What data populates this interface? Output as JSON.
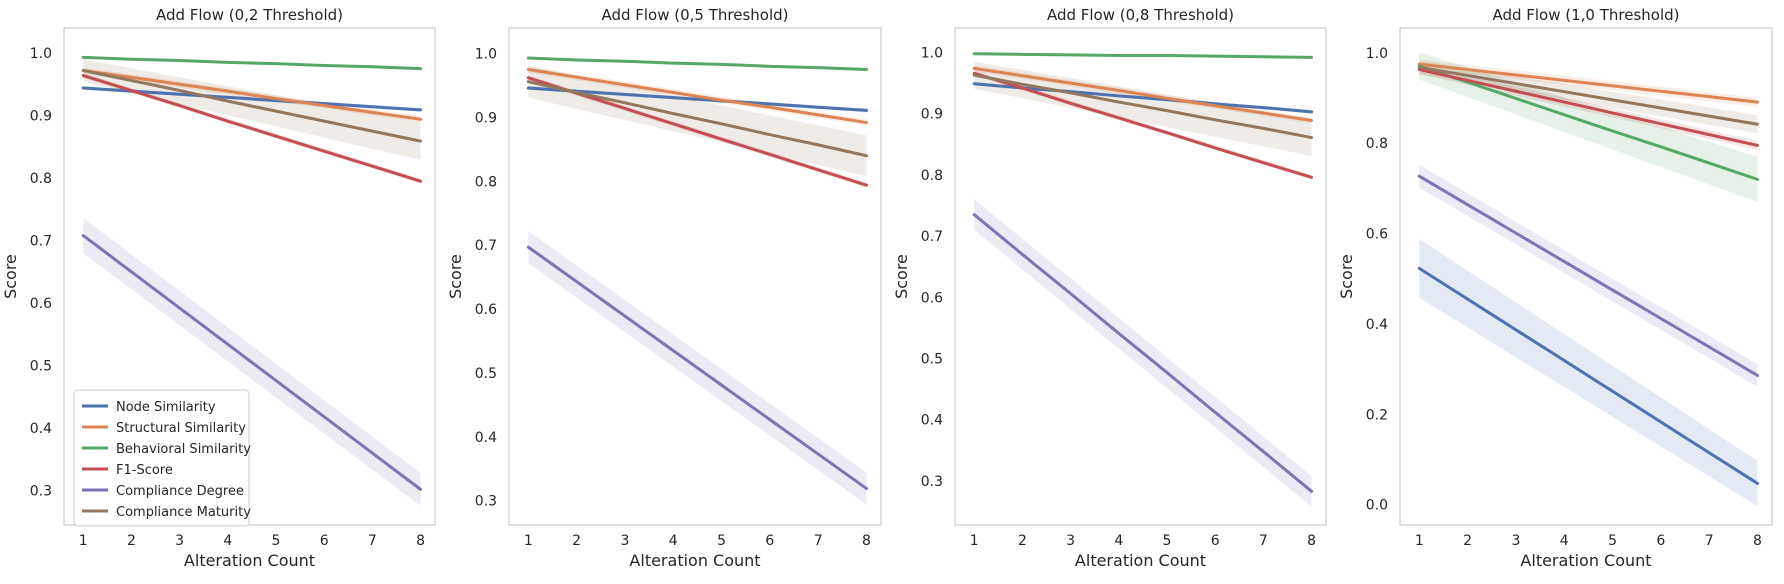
{
  "chart_data": [
    {
      "type": "line",
      "title": "Add Flow (0,2 Threshold)",
      "xlabel": "Alteration Count",
      "ylabel": "Score",
      "x": [
        1,
        2,
        3,
        4,
        5,
        6,
        7,
        8
      ],
      "xlim": [
        0.6,
        8.3
      ],
      "ylim": [
        0.245,
        1.04
      ],
      "yticks": [
        "0.3",
        "0.4",
        "0.5",
        "0.6",
        "0.7",
        "0.8",
        "0.9",
        "1.0"
      ],
      "yticks_values": [
        0.3,
        0.4,
        0.5,
        0.6,
        0.7,
        0.8,
        0.9,
        1.0
      ],
      "grid": false,
      "legend": "lower-left",
      "series": [
        {
          "name": "Node Similarity",
          "values": [
            0.944,
            0.939,
            0.934,
            0.929,
            0.924,
            0.919,
            0.914,
            0.909
          ],
          "ci": [
            0.003,
            0.003
          ]
        },
        {
          "name": "Structural Similarity",
          "values": [
            0.972,
            0.961,
            0.95,
            0.939,
            0.927,
            0.916,
            0.905,
            0.894
          ],
          "ci": [
            0.005,
            0.005
          ]
        },
        {
          "name": "Behavioral Similarity",
          "values": [
            0.993,
            0.99,
            0.988,
            0.985,
            0.983,
            0.98,
            0.978,
            0.975
          ],
          "ci": [
            0.002,
            0.002
          ]
        },
        {
          "name": "F1-Score",
          "values": [
            0.964,
            0.94,
            0.916,
            0.891,
            0.867,
            0.843,
            0.819,
            0.795
          ],
          "ci": [
            0.004,
            0.004
          ]
        },
        {
          "name": "Compliance Degree",
          "values": [
            0.708,
            0.65,
            0.592,
            0.534,
            0.476,
            0.418,
            0.36,
            0.302
          ],
          "ci": [
            0.028,
            0.026
          ]
        },
        {
          "name": "Compliance Maturity",
          "values": [
            0.972,
            0.956,
            0.94,
            0.923,
            0.907,
            0.891,
            0.875,
            0.859
          ],
          "ci": [
            0.018,
            0.03
          ]
        }
      ]
    },
    {
      "type": "line",
      "title": "Add Flow (0,5 Threshold)",
      "xlabel": "Alteration Count",
      "ylabel": "Score",
      "x": [
        1,
        2,
        3,
        4,
        5,
        6,
        7,
        8
      ],
      "xlim": [
        0.6,
        8.3
      ],
      "ylim": [
        0.262,
        1.04
      ],
      "yticks": [
        "0.3",
        "0.4",
        "0.5",
        "0.6",
        "0.7",
        "0.8",
        "0.9",
        "1.0"
      ],
      "yticks_values": [
        0.3,
        0.4,
        0.5,
        0.6,
        0.7,
        0.8,
        0.9,
        1.0
      ],
      "grid": false,
      "legend": "none",
      "series": [
        {
          "name": "Node Similarity",
          "values": [
            0.946,
            0.941,
            0.936,
            0.931,
            0.926,
            0.921,
            0.916,
            0.911
          ],
          "ci": [
            0.003,
            0.003
          ]
        },
        {
          "name": "Structural Similarity",
          "values": [
            0.975,
            0.963,
            0.951,
            0.939,
            0.927,
            0.916,
            0.904,
            0.892
          ],
          "ci": [
            0.005,
            0.005
          ]
        },
        {
          "name": "Behavioral Similarity",
          "values": [
            0.993,
            0.99,
            0.988,
            0.985,
            0.983,
            0.98,
            0.978,
            0.975
          ],
          "ci": [
            0.002,
            0.002
          ]
        },
        {
          "name": "F1-Score",
          "values": [
            0.962,
            0.938,
            0.914,
            0.89,
            0.866,
            0.842,
            0.818,
            0.794
          ],
          "ci": [
            0.004,
            0.004
          ]
        },
        {
          "name": "Compliance Degree",
          "values": [
            0.697,
            0.643,
            0.589,
            0.535,
            0.481,
            0.427,
            0.373,
            0.319
          ],
          "ci": [
            0.025,
            0.025
          ]
        },
        {
          "name": "Compliance Maturity",
          "values": [
            0.956,
            0.939,
            0.923,
            0.906,
            0.89,
            0.873,
            0.857,
            0.84
          ],
          "ci": [
            0.025,
            0.032
          ]
        }
      ]
    },
    {
      "type": "line",
      "title": "Add Flow (0,8 Threshold)",
      "xlabel": "Alteration Count",
      "ylabel": "Score",
      "x": [
        1,
        2,
        3,
        4,
        5,
        6,
        7,
        8
      ],
      "xlim": [
        0.6,
        8.3
      ],
      "ylim": [
        0.228,
        1.04
      ],
      "yticks": [
        "0.3",
        "0.4",
        "0.5",
        "0.6",
        "0.7",
        "0.8",
        "0.9",
        "1.0"
      ],
      "yticks_values": [
        0.3,
        0.4,
        0.5,
        0.6,
        0.7,
        0.8,
        0.9,
        1.0
      ],
      "grid": false,
      "legend": "none",
      "series": [
        {
          "name": "Node Similarity",
          "values": [
            0.949,
            0.942,
            0.936,
            0.929,
            0.923,
            0.916,
            0.91,
            0.903
          ],
          "ci": [
            0.003,
            0.003
          ]
        },
        {
          "name": "Structural Similarity",
          "values": [
            0.974,
            0.962,
            0.95,
            0.938,
            0.925,
            0.913,
            0.901,
            0.889
          ],
          "ci": [
            0.005,
            0.005
          ]
        },
        {
          "name": "Behavioral Similarity",
          "values": [
            0.998,
            0.997,
            0.996,
            0.995,
            0.995,
            0.994,
            0.993,
            0.992
          ],
          "ci": [
            0.002,
            0.002
          ]
        },
        {
          "name": "F1-Score",
          "values": [
            0.966,
            0.942,
            0.917,
            0.893,
            0.869,
            0.844,
            0.82,
            0.796
          ],
          "ci": [
            0.004,
            0.004
          ]
        },
        {
          "name": "Compliance Degree",
          "values": [
            0.735,
            0.67,
            0.606,
            0.541,
            0.477,
            0.412,
            0.348,
            0.283
          ],
          "ci": [
            0.025,
            0.025
          ]
        },
        {
          "name": "Compliance Maturity",
          "values": [
            0.963,
            0.948,
            0.934,
            0.919,
            0.905,
            0.89,
            0.876,
            0.861
          ],
          "ci": [
            0.022,
            0.03
          ]
        }
      ]
    },
    {
      "type": "line",
      "title": "Add Flow (1,0 Threshold)",
      "xlabel": "Alteration Count",
      "ylabel": "Score",
      "x": [
        1,
        2,
        3,
        4,
        5,
        6,
        7,
        8
      ],
      "xlim": [
        0.6,
        8.3
      ],
      "ylim": [
        -0.045,
        1.055
      ],
      "yticks": [
        "0.0",
        "0.2",
        "0.4",
        "0.6",
        "0.8",
        "1.0"
      ],
      "yticks_values": [
        0.0,
        0.2,
        0.4,
        0.6,
        0.8,
        1.0
      ],
      "grid": false,
      "legend": "none",
      "series": [
        {
          "name": "Node Similarity",
          "values": [
            0.523,
            0.455,
            0.387,
            0.319,
            0.251,
            0.183,
            0.115,
            0.047
          ],
          "ci": [
            0.065,
            0.05
          ]
        },
        {
          "name": "Structural Similarity",
          "values": [
            0.975,
            0.963,
            0.951,
            0.939,
            0.927,
            0.915,
            0.903,
            0.891
          ],
          "ci": [
            0.01,
            0.01
          ]
        },
        {
          "name": "Behavioral Similarity",
          "values": [
            0.971,
            0.935,
            0.899,
            0.863,
            0.827,
            0.792,
            0.756,
            0.72
          ],
          "ci": [
            0.03,
            0.05
          ]
        },
        {
          "name": "F1-Score",
          "values": [
            0.963,
            0.939,
            0.915,
            0.891,
            0.867,
            0.843,
            0.819,
            0.795
          ],
          "ci": [
            0.01,
            0.01
          ]
        },
        {
          "name": "Compliance Degree",
          "values": [
            0.727,
            0.664,
            0.601,
            0.538,
            0.475,
            0.412,
            0.349,
            0.286
          ],
          "ci": [
            0.025,
            0.025
          ]
        },
        {
          "name": "Compliance Maturity",
          "values": [
            0.968,
            0.95,
            0.932,
            0.914,
            0.896,
            0.878,
            0.86,
            0.842
          ],
          "ci": [
            0.015,
            0.02
          ]
        }
      ]
    }
  ],
  "colors": {
    "Node Similarity": "#4c72b0",
    "Structural Similarity": "#dd8452",
    "Behavioral Similarity": "#55a868",
    "F1-Score": "#c44e52",
    "Compliance Degree": "#8172b3",
    "Compliance Maturity": "#937860",
    "spine": "#cccccc",
    "text": "#262626"
  }
}
